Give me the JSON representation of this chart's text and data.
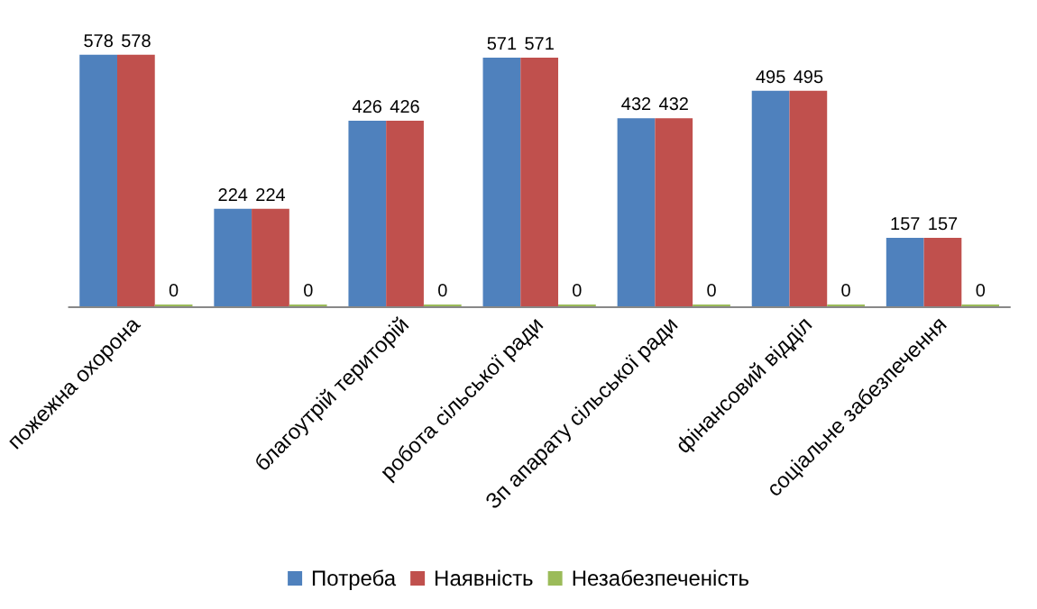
{
  "chart_data": {
    "type": "bar",
    "categories": [
      "пожежна охорона",
      null,
      "благоутрій територій",
      "робота сільської ради",
      "Зп апарату сільської ради",
      "фінансовий відділ",
      "соціальне забезпечення"
    ],
    "series": [
      {
        "name": "Потреба",
        "color": "#4f81bd",
        "values": [
          578,
          224,
          426,
          571,
          432,
          495,
          157
        ]
      },
      {
        "name": "Наявність",
        "color": "#c0504d",
        "values": [
          578,
          224,
          426,
          571,
          432,
          495,
          157
        ]
      },
      {
        "name": "Незабезпеченість",
        "color": "#9bbb59",
        "values": [
          0,
          0,
          0,
          0,
          0,
          0,
          0
        ]
      }
    ],
    "data_labels": true,
    "legend": "bottom",
    "grid": false
  }
}
